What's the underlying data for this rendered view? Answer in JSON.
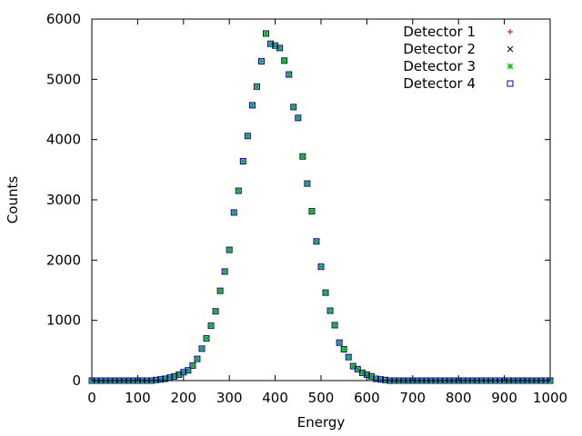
{
  "chart_data": {
    "type": "scatter",
    "xlabel": "Energy",
    "ylabel": "Counts",
    "xlim": [
      0,
      1000
    ],
    "ylim": [
      0,
      6000
    ],
    "x_ticks": [
      0,
      100,
      200,
      300,
      400,
      500,
      600,
      700,
      800,
      900,
      1000
    ],
    "y_ticks": [
      0,
      1000,
      2000,
      3000,
      4000,
      5000,
      6000
    ],
    "grid": false,
    "legend_position": "top-right",
    "x": [
      0,
      10,
      20,
      30,
      40,
      50,
      60,
      70,
      80,
      90,
      100,
      110,
      120,
      130,
      140,
      150,
      160,
      170,
      180,
      190,
      200,
      210,
      220,
      230,
      240,
      250,
      260,
      270,
      280,
      290,
      300,
      310,
      320,
      330,
      340,
      350,
      360,
      370,
      380,
      390,
      400,
      410,
      420,
      430,
      440,
      450,
      460,
      470,
      480,
      490,
      500,
      510,
      520,
      530,
      540,
      550,
      560,
      570,
      580,
      590,
      600,
      610,
      620,
      630,
      640,
      650,
      660,
      670,
      680,
      690,
      700,
      710,
      720,
      730,
      740,
      750,
      760,
      770,
      780,
      790,
      800,
      810,
      820,
      830,
      840,
      850,
      860,
      870,
      880,
      890,
      900,
      910,
      920,
      930,
      940,
      950,
      960,
      970,
      980,
      990,
      1000
    ],
    "series": [
      {
        "name": "Detector 1",
        "marker": "plus",
        "color": "#cc0000",
        "values": [
          0,
          0,
          0,
          0,
          0,
          0,
          0,
          0,
          0,
          0,
          0,
          0,
          0,
          0,
          10,
          20,
          30,
          50,
          70,
          100,
          140,
          170,
          250,
          360,
          530,
          700,
          910,
          1150,
          1490,
          1810,
          2170,
          2790,
          3150,
          3640,
          4060,
          4570,
          4880,
          5300,
          5760,
          5590,
          5560,
          5520,
          5310,
          5080,
          4540,
          4360,
          3720,
          3270,
          2810,
          2310,
          1890,
          1460,
          1160,
          920,
          630,
          520,
          390,
          240,
          190,
          130,
          100,
          70,
          30,
          20,
          10,
          0,
          0,
          0,
          0,
          0,
          0,
          0,
          0,
          0,
          0,
          0,
          0,
          0,
          0,
          0,
          0,
          0,
          0,
          0,
          0,
          0,
          0,
          0,
          0,
          0,
          0,
          0,
          0,
          0,
          0,
          0,
          0,
          0,
          0,
          0,
          0
        ]
      },
      {
        "name": "Detector 2",
        "marker": "cross",
        "color": "#000000",
        "values": [
          0,
          0,
          0,
          0,
          0,
          0,
          0,
          0,
          0,
          0,
          0,
          0,
          0,
          0,
          10,
          20,
          30,
          50,
          70,
          100,
          140,
          170,
          250,
          360,
          530,
          700,
          910,
          1150,
          1490,
          1810,
          2170,
          2790,
          3150,
          3640,
          4060,
          4570,
          4880,
          5300,
          5760,
          5590,
          5560,
          5520,
          5310,
          5080,
          4540,
          4360,
          3720,
          3270,
          2810,
          2310,
          1890,
          1460,
          1160,
          920,
          630,
          520,
          390,
          240,
          190,
          130,
          100,
          70,
          30,
          20,
          10,
          0,
          0,
          0,
          0,
          0,
          0,
          0,
          0,
          0,
          0,
          0,
          0,
          0,
          0,
          0,
          0,
          0,
          0,
          0,
          0,
          0,
          0,
          0,
          0,
          0,
          0,
          0,
          0,
          0,
          0,
          0,
          0,
          0,
          0,
          0,
          0
        ]
      },
      {
        "name": "Detector 3",
        "marker": "star",
        "color": "#00c000",
        "values": [
          0,
          0,
          0,
          0,
          0,
          0,
          0,
          0,
          0,
          0,
          0,
          0,
          0,
          0,
          10,
          20,
          30,
          50,
          70,
          100,
          140,
          170,
          250,
          360,
          530,
          700,
          910,
          1150,
          1490,
          1810,
          2170,
          2790,
          3150,
          3640,
          4060,
          4570,
          4880,
          5300,
          5760,
          5590,
          5560,
          5520,
          5310,
          5080,
          4540,
          4360,
          3720,
          3270,
          2810,
          2310,
          1890,
          1460,
          1160,
          920,
          630,
          520,
          390,
          240,
          190,
          130,
          100,
          70,
          30,
          20,
          10,
          0,
          0,
          0,
          0,
          0,
          0,
          0,
          0,
          0,
          0,
          0,
          0,
          0,
          0,
          0,
          0,
          0,
          0,
          0,
          0,
          0,
          0,
          0,
          0,
          0,
          0,
          0,
          0,
          0,
          0,
          0,
          0,
          0,
          0,
          0,
          0
        ]
      },
      {
        "name": "Detector 4",
        "marker": "square",
        "color": "#0000cc",
        "values": [
          0,
          0,
          0,
          0,
          0,
          0,
          0,
          0,
          0,
          0,
          0,
          0,
          0,
          0,
          10,
          20,
          30,
          50,
          70,
          100,
          140,
          170,
          250,
          360,
          530,
          700,
          910,
          1150,
          1490,
          1810,
          2170,
          2790,
          3150,
          3640,
          4060,
          4570,
          4880,
          5300,
          5760,
          5590,
          5560,
          5520,
          5310,
          5080,
          4540,
          4360,
          3720,
          3270,
          2810,
          2310,
          1890,
          1460,
          1160,
          920,
          630,
          520,
          390,
          240,
          190,
          130,
          100,
          70,
          30,
          20,
          10,
          0,
          0,
          0,
          0,
          0,
          0,
          0,
          0,
          0,
          0,
          0,
          0,
          0,
          0,
          0,
          0,
          0,
          0,
          0,
          0,
          0,
          0,
          0,
          0,
          0,
          0,
          0,
          0,
          0,
          0,
          0,
          0,
          0,
          0,
          0,
          0
        ]
      }
    ]
  }
}
